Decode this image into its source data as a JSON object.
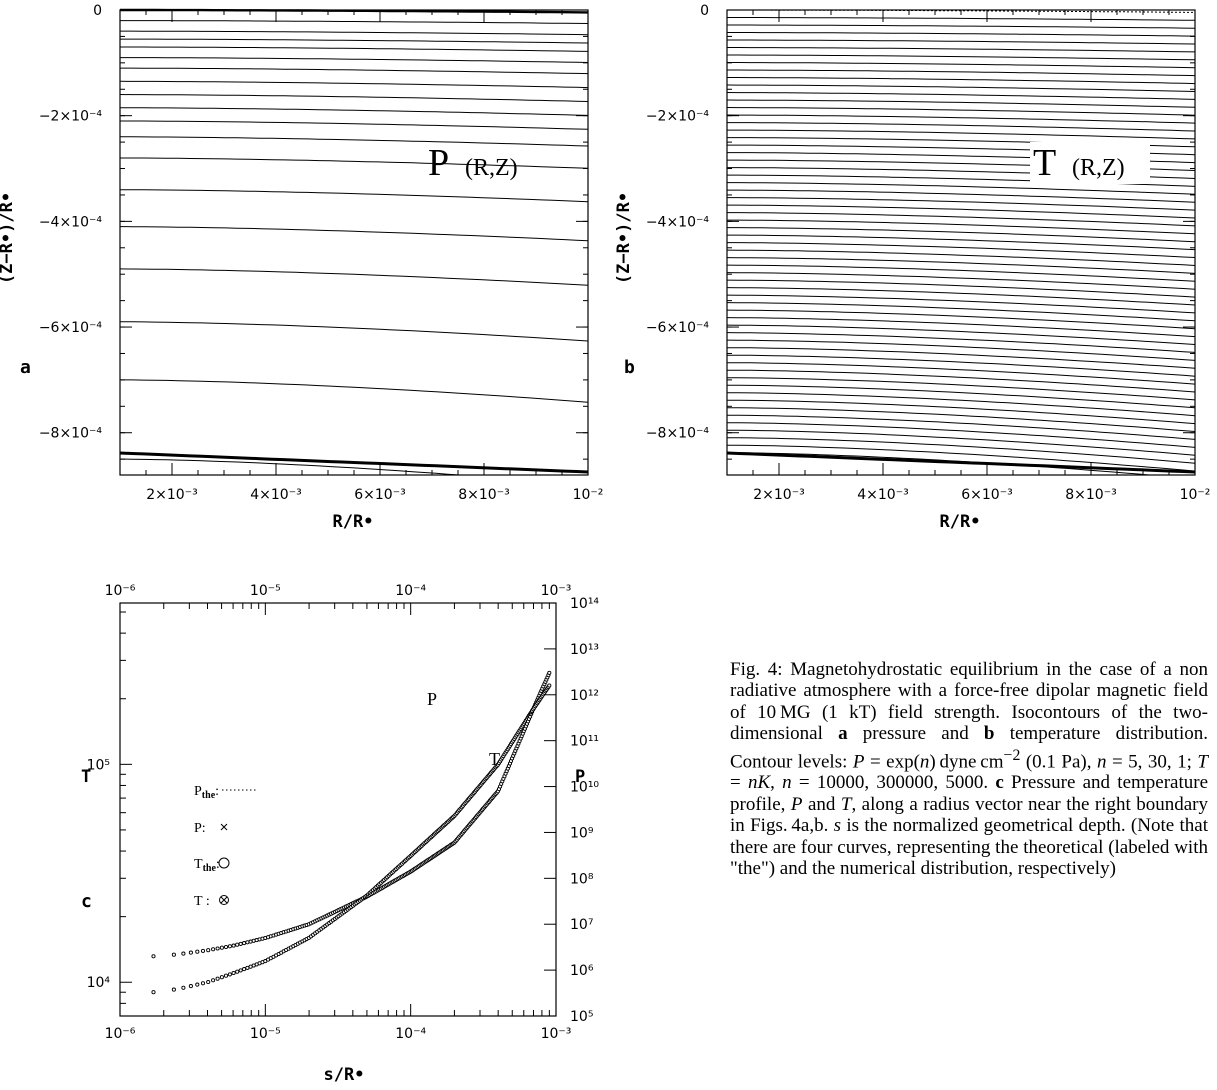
{
  "panel_a": {
    "label": "a",
    "inset": "P",
    "inset_args": "(R,Z)",
    "ylabel": "(Z−R•)/R•",
    "xlabel": "R/R•",
    "yticks": [
      "0",
      "−2×10⁻⁴",
      "−4×10⁻⁴",
      "−6×10⁻⁴",
      "−8×10⁻⁴"
    ],
    "xticks": [
      "2×10⁻³",
      "4×10⁻³",
      "6×10⁻³",
      "8×10⁻³",
      "10⁻²"
    ]
  },
  "panel_b": {
    "label": "b",
    "inset": "T",
    "inset_args": "(R,Z)",
    "ylabel": "(Z−R•)/R•",
    "xlabel": "R/R•",
    "yticks": [
      "0",
      "−2×10⁻⁴",
      "−4×10⁻⁴",
      "−6×10⁻⁴",
      "−8×10⁻⁴"
    ],
    "xticks": [
      "2×10⁻³",
      "4×10⁻³",
      "6×10⁻³",
      "8×10⁻³",
      "10⁻²"
    ]
  },
  "panel_c": {
    "label": "c",
    "xlabel": "s/R•",
    "ylabel_left": "T",
    "ylabel_right": "P",
    "xticks": [
      "10⁻⁶",
      "10⁻⁵",
      "10⁻⁴",
      "10⁻³"
    ],
    "yticks_left": [
      "10⁵",
      "10⁴"
    ],
    "yticks_right": [
      "10¹⁴",
      "10¹³",
      "10¹²",
      "10¹¹",
      "10¹⁰",
      "10⁹",
      "10⁸",
      "10⁷",
      "10⁶",
      "10⁵"
    ],
    "curve_labels": {
      "P": "P",
      "T": "T"
    },
    "legend": [
      {
        "name": "P",
        "sub": "the",
        "suffix": ":",
        "symbol": "dotted-line"
      },
      {
        "name": "P",
        "sub": "",
        "suffix": ":",
        "symbol": "cross"
      },
      {
        "name": "T",
        "sub": "the",
        "suffix": ":",
        "symbol": "circle"
      },
      {
        "name": "T",
        "sub": "",
        "suffix": " :",
        "symbol": "circle-cross"
      }
    ]
  },
  "chart_data": [
    {
      "type": "line",
      "title": "P (R,Z)",
      "xlabel": "R/R•",
      "ylabel": "(Z−R•)/R•",
      "xlim": [
        0.001,
        0.01
      ],
      "ylim": [
        -0.00088,
        0
      ],
      "series": [
        {
          "name": "isocontours",
          "contour_depths_left": [
            0,
            -2e-05,
            -4e-05,
            -5.5e-05,
            -7e-05,
            -9e-05,
            -0.00011,
            -0.000135,
            -0.00016,
            -0.000185,
            -0.00021,
            -0.00024,
            -0.00028,
            -0.00034,
            -0.00041,
            -0.00049,
            -0.00059,
            -0.0007,
            -0.00085
          ]
        }
      ]
    },
    {
      "type": "line",
      "title": "T (R,Z)",
      "xlabel": "R/R•",
      "ylabel": "(Z−R•)/R•",
      "xlim": [
        0.001,
        0.01
      ],
      "ylim": [
        -0.00088,
        0
      ],
      "series": [
        {
          "name": "isocontours",
          "contour_spacing": 1.42e-05,
          "count": 60
        }
      ]
    },
    {
      "type": "scatter",
      "xlabel": "s/R•",
      "ylabel": "T",
      "ylabel_right": "P",
      "xscale": "log",
      "xlim": [
        1e-06,
        0.001
      ],
      "ylim_left": [
        7000,
        550000
      ],
      "ylim_right": [
        100000,
        100000000000000
      ],
      "series": [
        {
          "name": "P",
          "x": [
            1.7e-06,
            2.5e-06,
            4e-06,
            6e-06,
            1e-05,
            2e-05,
            5e-05,
            0.0001,
            0.0002,
            0.0004,
            0.0007,
            0.0009
          ],
          "y": [
            2000000,
            2200000,
            2700000,
            3400000,
            5000000,
            10000000,
            40000000,
            140000000,
            600000000,
            8000000000,
            500000000000,
            3000000000000
          ]
        },
        {
          "name": "T",
          "x": [
            1.7e-06,
            2.5e-06,
            4e-06,
            6e-06,
            1e-05,
            2e-05,
            5e-05,
            0.0001,
            0.0002,
            0.0004,
            0.0007,
            0.0009
          ],
          "y": [
            9000,
            9300,
            10000,
            11000,
            12500,
            16000,
            25000,
            38000,
            58000,
            100000,
            180000,
            230000
          ]
        }
      ]
    }
  ]
}
